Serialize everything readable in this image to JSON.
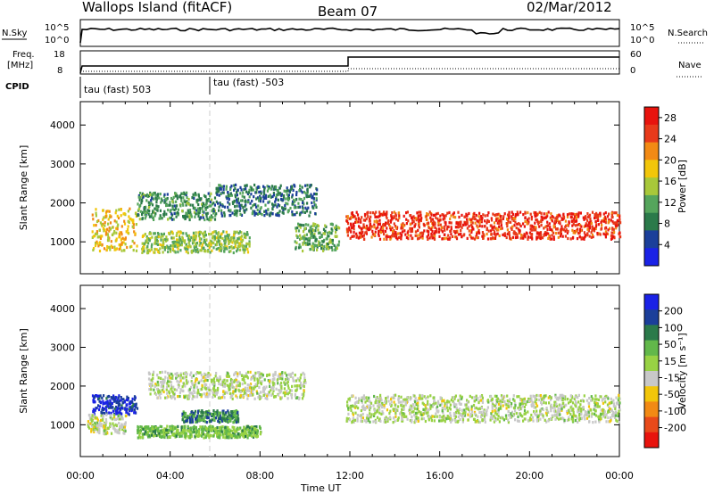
{
  "header": {
    "station": "Wallops Island (fitACF)",
    "beam": "Beam 07",
    "date": "02/Mar/2012"
  },
  "top_panel": {
    "left_label_1": "N.Sky",
    "left_ticks": [
      "10^5",
      "10^0"
    ],
    "right_label_1": "N.Search",
    "right_ticks": [
      "10^5",
      "10^0"
    ],
    "freq_label_1": "Freq.",
    "freq_label_2": "[MHz]",
    "freq_ticks": [
      "18",
      "8"
    ],
    "nave_label": "Nave",
    "nave_ticks": [
      "60",
      "0"
    ],
    "cpid_label": "CPID",
    "cpid_segments": [
      "tau (fast) 503",
      "tau (fast) -503"
    ]
  },
  "colors": {
    "power_scale": [
      "#1a22e6",
      "#1b3f9a",
      "#2b7a4a",
      "#55a55c",
      "#a8c83a",
      "#f2c60a",
      "#f28a14",
      "#e83a1a",
      "#e8130d"
    ],
    "velocity_scale": [
      "#1a22e6",
      "#1b3f9a",
      "#2b7a4a",
      "#62b84a",
      "#98d244",
      "#c8c8c8",
      "#f2c60a",
      "#f28a14",
      "#e84a1a",
      "#e8130d"
    ]
  },
  "chart_data": [
    {
      "type": "heatmap",
      "name": "power",
      "ylabel": "Slant Range [km]",
      "xlabel": "Time UT",
      "x_ticks": [
        "00:00",
        "04:00",
        "08:00",
        "12:00",
        "16:00",
        "20:00",
        "00:00"
      ],
      "y_ticks": [
        1000,
        2000,
        3000,
        4000
      ],
      "ylim": [
        180,
        4600
      ],
      "xlim_hours": [
        0,
        24
      ],
      "colorbar_label": "Power [dB]",
      "colorbar_ticks": [
        4,
        8,
        12,
        16,
        20,
        24,
        28
      ],
      "colorbar_range": [
        0,
        30
      ],
      "echo_bands": [
        {
          "t0": 0.5,
          "t1": 2.5,
          "r_low": 800,
          "r_high": 1900,
          "value": 18
        },
        {
          "t0": 2.5,
          "t1": 6.0,
          "r_low": 1600,
          "r_high": 2300,
          "value": 10
        },
        {
          "t0": 2.7,
          "t1": 7.5,
          "r_low": 750,
          "r_high": 1300,
          "value": 14
        },
        {
          "t0": 6.0,
          "t1": 10.5,
          "r_low": 1700,
          "r_high": 2500,
          "value": 8
        },
        {
          "t0": 9.5,
          "t1": 11.5,
          "r_low": 800,
          "r_high": 1500,
          "value": 12
        },
        {
          "t0": 11.8,
          "t1": 24.0,
          "r_low": 1100,
          "r_high": 1800,
          "value": 26
        }
      ]
    },
    {
      "type": "heatmap",
      "name": "velocity",
      "ylabel": "Slant Range [km]",
      "xlabel": "Time UT",
      "x_ticks": [
        "00:00",
        "04:00",
        "08:00",
        "12:00",
        "16:00",
        "20:00",
        "00:00"
      ],
      "y_ticks": [
        1000,
        2000,
        3000,
        4000
      ],
      "ylim": [
        180,
        4600
      ],
      "xlim_hours": [
        0,
        24
      ],
      "colorbar_label": "Velocity [m s⁻¹]",
      "colorbar_ticks": [
        "200",
        "100",
        "50",
        "15",
        "-15",
        "-50",
        "-100",
        "-200"
      ],
      "colorbar_range": [
        -250,
        250
      ],
      "echo_bands": [
        {
          "t0": 0.5,
          "t1": 2.5,
          "r_low": 1300,
          "r_high": 1800,
          "value": 200
        },
        {
          "t0": 0.3,
          "t1": 2.0,
          "r_low": 800,
          "r_high": 1300,
          "value": 0
        },
        {
          "t0": 2.5,
          "t1": 8.0,
          "r_low": 700,
          "r_high": 1000,
          "value": 60
        },
        {
          "t0": 4.5,
          "t1": 7.0,
          "r_low": 1100,
          "r_high": 1400,
          "value": 120
        },
        {
          "t0": 3.0,
          "t1": 10.0,
          "r_low": 1700,
          "r_high": 2400,
          "value": 0
        },
        {
          "t0": 11.8,
          "t1": 24.0,
          "r_low": 1100,
          "r_high": 1800,
          "value": 0
        }
      ]
    }
  ]
}
